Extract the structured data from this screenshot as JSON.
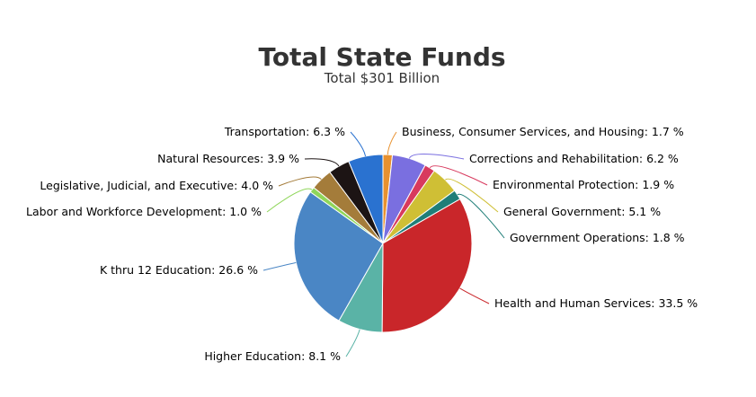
{
  "chart_data": {
    "type": "pie",
    "title": "Total State Funds",
    "subtitle": "Total $301 Billion",
    "value_suffix": " %",
    "slices": [
      {
        "label": "Business, Consumer Services, and Housing",
        "value": 1.7,
        "color": "#e8912f"
      },
      {
        "label": "Corrections and Rehabilitation",
        "value": 6.2,
        "color": "#7a6fe0"
      },
      {
        "label": "Environmental Protection",
        "value": 1.9,
        "color": "#d83a5e"
      },
      {
        "label": "General Government",
        "value": 5.1,
        "color": "#cfbf35"
      },
      {
        "label": "Government Operations",
        "value": 1.8,
        "color": "#1f7e78"
      },
      {
        "label": "Health and Human Services",
        "value": 33.5,
        "color": "#c9262a"
      },
      {
        "label": "Higher Education",
        "value": 8.1,
        "color": "#5ab3a6"
      },
      {
        "label": "K thru 12 Education",
        "value": 26.6,
        "color": "#4a86c5"
      },
      {
        "label": "Labor and Workforce Development",
        "value": 1.0,
        "color": "#8fd65a"
      },
      {
        "label": "Legislative, Judicial, and Executive",
        "value": 4.0,
        "color": "#a47c3a"
      },
      {
        "label": "Natural Resources",
        "value": 3.9,
        "color": "#1c1414"
      },
      {
        "label": "Transportation",
        "value": 6.3,
        "color": "#2a72d0"
      }
    ]
  }
}
